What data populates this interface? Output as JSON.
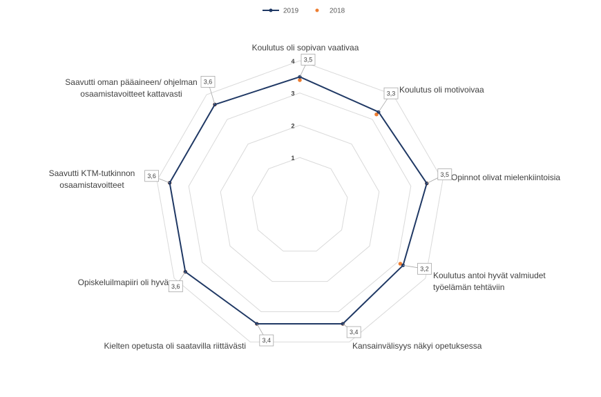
{
  "chart_data": {
    "type": "radar",
    "title": "",
    "categories": [
      "Koulutus oli sopivan vaativaa",
      "Koulutus oli motivoivaa",
      "Opinnot olivat mielenkiintoisia",
      "Koulutus antoi hyvät valmiudet työelämän tehtäviin",
      "Kansainvälisyys näkyi opetuksessa",
      "Kielten opetusta oli saatavilla riittävästi",
      "Opiskeluilmapiiri oli hyvä",
      "Saavutti KTM-tutkinnon osaamistavoitteet",
      "Saavutti oman pääaineen/ ohjelman osaamistavoitteet kattavasti"
    ],
    "category_lines": [
      [
        "Koulutus oli sopivan vaativaa"
      ],
      [
        "Koulutus oli motivoivaa"
      ],
      [
        "Opinnot olivat mielenkiintoisia"
      ],
      [
        "Koulutus antoi hyvät valmiudet",
        "työelämän tehtäviin"
      ],
      [
        "Kansainvälisyys näkyi opetuksessa"
      ],
      [
        "Kielten opetusta oli saatavilla riittävästi"
      ],
      [
        "Opiskeluilmapiiri oli hyvä"
      ],
      [
        "Saavutti KTM-tutkinnon",
        "osaamistavoitteet"
      ],
      [
        "Saavutti oman pääaineen/ ohjelman",
        "osaamistavoitteet kattavasti"
      ]
    ],
    "radial_ticks": [
      1,
      2,
      3,
      4
    ],
    "radial_tick_labels": [
      "1",
      "2",
      "3",
      "4"
    ],
    "range": [
      1,
      4
    ],
    "grid": true,
    "legend_position": "top",
    "series": [
      {
        "name": "2019",
        "values": [
          3.5,
          3.3,
          3.5,
          3.2,
          3.4,
          3.4,
          3.6,
          3.6,
          3.6
        ],
        "data_labels": [
          "3,5",
          "3,3",
          "3,5",
          "3,2",
          "3,4",
          "3,4",
          "3,6",
          "3,6",
          "3,6"
        ],
        "color": "#1f3864",
        "style": "line-markers"
      },
      {
        "name": "2018",
        "values": [
          3.4,
          3.2,
          3.5,
          3.1,
          3.4,
          3.4,
          3.6,
          3.6,
          3.6
        ],
        "color": "#ed7d31",
        "style": "markers"
      }
    ]
  }
}
